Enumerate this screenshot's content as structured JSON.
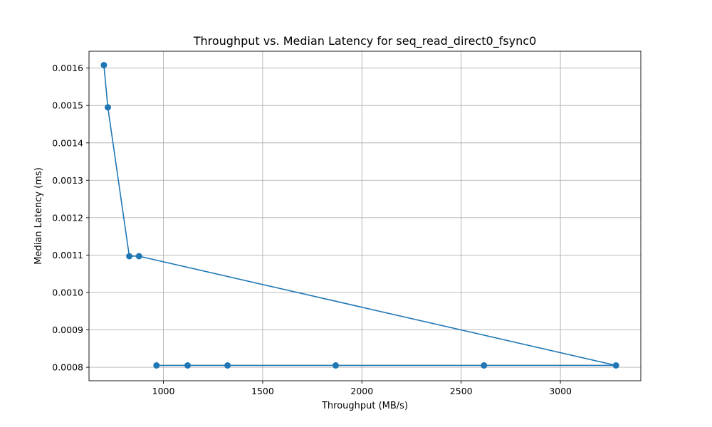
{
  "chart_data": {
    "type": "line",
    "title": "Throughput vs. Median Latency for seq_read_direct0_fsync0",
    "xlabel": "Throughput (MB/s)",
    "ylabel": "Median Latency (ms)",
    "xlim": [
      625,
      3405
    ],
    "ylim": [
      0.000764,
      0.001645
    ],
    "xticks": [
      1000,
      1500,
      2000,
      2500,
      3000
    ],
    "xtick_labels": [
      "1000",
      "1500",
      "2000",
      "2500",
      "3000"
    ],
    "yticks": [
      0.0008,
      0.0009,
      0.001,
      0.0011,
      0.0012,
      0.0013,
      0.0014,
      0.0015,
      0.0016
    ],
    "ytick_labels": [
      "0.0008",
      "0.0009",
      "0.0010",
      "0.0011",
      "0.0012",
      "0.0013",
      "0.0014",
      "0.0015",
      "0.0016"
    ],
    "grid": true,
    "series": [
      {
        "color": "#1f77b4",
        "marker": "circle",
        "x": [
          700,
          720,
          828,
          877,
          3280,
          2615,
          1868,
          1323,
          1122,
          965
        ],
        "y": [
          0.001608,
          0.001495,
          0.001097,
          0.001097,
          0.000805,
          0.000805,
          0.000805,
          0.000805,
          0.000805,
          0.000805
        ]
      }
    ]
  }
}
